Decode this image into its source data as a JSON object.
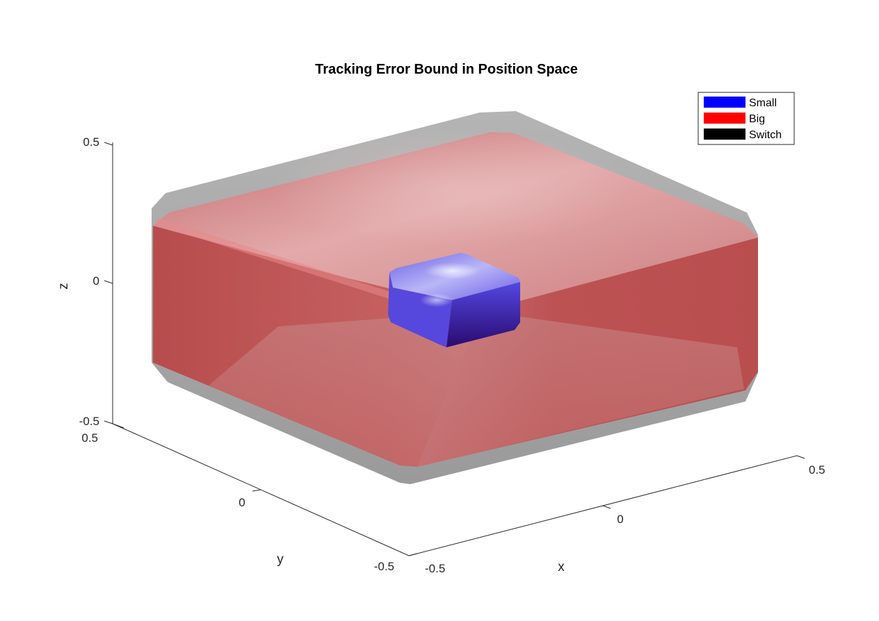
{
  "chart_data": {
    "type": "surface3d",
    "title": "Tracking Error Bound in Position Space",
    "xlabel": "x",
    "ylabel": "y",
    "zlabel": "z",
    "xlim": [
      -0.5,
      0.5
    ],
    "ylim": [
      -0.5,
      0.5
    ],
    "zlim": [
      -0.5,
      0.5
    ],
    "x_ticks": [
      "-0.5",
      "0",
      "0.5"
    ],
    "y_ticks": [
      "-0.5",
      "0",
      "0.5"
    ],
    "z_ticks": [
      "-0.5",
      "0",
      "0.5"
    ],
    "legend_position": "top-right",
    "legend": [
      {
        "name": "Small",
        "color": "#0000ff"
      },
      {
        "name": "Big",
        "color": "#ff0000"
      },
      {
        "name": "Switch",
        "color": "#000000"
      }
    ],
    "surfaces": [
      {
        "name": "Switch",
        "color": "#9a9a9a",
        "half_extent_xy": 0.5,
        "half_extent_z": 0.33
      },
      {
        "name": "Big",
        "color": "#c0504f",
        "half_extent_xy": 0.48,
        "half_extent_z": 0.3
      },
      {
        "name": "Small",
        "color": "#4b3ce0",
        "half_extent_xy": 0.1,
        "half_extent_z": 0.09
      }
    ]
  }
}
